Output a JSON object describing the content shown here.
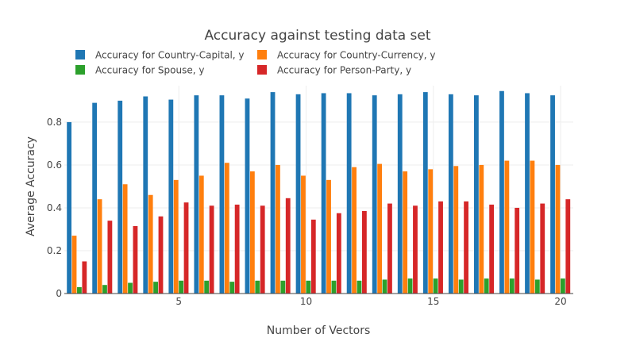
{
  "chart_data": {
    "type": "bar",
    "title": "Accuracy against testing data set",
    "xlabel": "Number of Vectors",
    "ylabel": "Average Accuracy",
    "x": [
      1,
      2,
      3,
      4,
      5,
      6,
      7,
      8,
      9,
      10,
      11,
      12,
      13,
      14,
      15,
      16,
      17,
      18,
      19,
      20
    ],
    "x_ticks": [
      "5",
      "10",
      "15",
      "20"
    ],
    "y_ticks": [
      "0",
      "0.2",
      "0.4",
      "0.6",
      "0.8"
    ],
    "ylim": [
      0,
      0.97
    ],
    "xlim": [
      0.5,
      20.5
    ],
    "grid": true,
    "legend_position": "top-left",
    "series": [
      {
        "name": "Accuracy for Country-Capital, y",
        "color": "#1f77b4",
        "values": [
          0.8,
          0.89,
          0.9,
          0.92,
          0.905,
          0.925,
          0.925,
          0.91,
          0.94,
          0.93,
          0.935,
          0.935,
          0.925,
          0.93,
          0.94,
          0.93,
          0.925,
          0.945,
          0.935,
          0.925
        ]
      },
      {
        "name": "Accuracy for Country-Currency, y",
        "color": "#ff7f0e",
        "values": [
          0.27,
          0.44,
          0.51,
          0.46,
          0.53,
          0.55,
          0.61,
          0.57,
          0.6,
          0.55,
          0.53,
          0.59,
          0.605,
          0.57,
          0.58,
          0.595,
          0.6,
          0.62,
          0.62,
          0.6
        ]
      },
      {
        "name": "Accuracy for Spouse, y",
        "color": "#2ca02c",
        "values": [
          0.03,
          0.04,
          0.05,
          0.055,
          0.06,
          0.06,
          0.055,
          0.06,
          0.06,
          0.06,
          0.06,
          0.06,
          0.065,
          0.07,
          0.07,
          0.065,
          0.07,
          0.07,
          0.065,
          0.07
        ]
      },
      {
        "name": "Accuracy for Person-Party, y",
        "color": "#d62728",
        "values": [
          0.15,
          0.34,
          0.315,
          0.36,
          0.425,
          0.41,
          0.415,
          0.41,
          0.445,
          0.345,
          0.375,
          0.385,
          0.42,
          0.41,
          0.43,
          0.43,
          0.415,
          0.4,
          0.42,
          0.44
        ]
      }
    ]
  }
}
